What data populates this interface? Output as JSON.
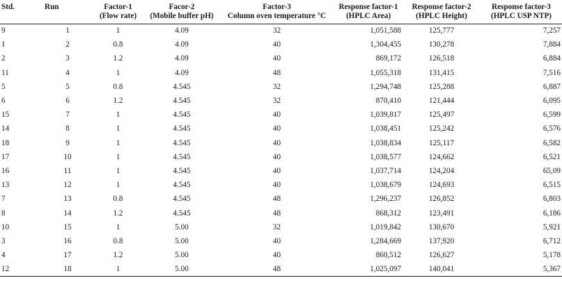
{
  "table": {
    "headers": [
      {
        "line1": "Std.",
        "line2": ""
      },
      {
        "line1": "Run",
        "line2": ""
      },
      {
        "line1": "Factor-1",
        "line2": "(Flow rate)"
      },
      {
        "line1": "Facor-2",
        "line2": "(Mobile buffer pH)"
      },
      {
        "line1": "Factor-3",
        "line2": "Column oven temperature °C"
      },
      {
        "line1": "Response factor-1",
        "line2": "(HPLC Area)"
      },
      {
        "line1": "Response factor-2",
        "line2": "(HPLC Height)"
      },
      {
        "line1": "Response factor-3",
        "line2": "(HPLC USP NTP)"
      }
    ],
    "rows": [
      [
        "9",
        "1",
        "1",
        "4.09",
        "32",
        "1,051,588",
        "125,777",
        "7,257"
      ],
      [
        "1",
        "2",
        "0.8",
        "4.09",
        "40",
        "1,304,455",
        "130,278",
        "7,884"
      ],
      [
        "2",
        "3",
        "1.2",
        "4.09",
        "40",
        "869,172",
        "126,518",
        "6,884"
      ],
      [
        "11",
        "4",
        "1",
        "4.09",
        "48",
        "1,055,318",
        "131,415",
        "7,516"
      ],
      [
        "5",
        "5",
        "0.8",
        "4.545",
        "32",
        "1,294,748",
        "125,288",
        "6,887"
      ],
      [
        "6",
        "6",
        "1.2",
        "4.545",
        "32",
        "870,410",
        "121,444",
        "6,095"
      ],
      [
        "15",
        "7",
        "1",
        "4.545",
        "40",
        "1,039,817",
        "125,497",
        "6,599"
      ],
      [
        "14",
        "8",
        "1",
        "4.545",
        "40",
        "1,038,451",
        "125,242",
        "6,576"
      ],
      [
        "18",
        "9",
        "1",
        "4.545",
        "40",
        "1,038,834",
        "125,117",
        "6,582"
      ],
      [
        "17",
        "10",
        "1",
        "4.545",
        "40",
        "1,038,577",
        "124,662",
        "6,521"
      ],
      [
        "16",
        "11",
        "1",
        "4.545",
        "40",
        "1,037,714",
        "124,204",
        "65,09"
      ],
      [
        "13",
        "12",
        "1",
        "4.545",
        "40",
        "1,038,679",
        "124,693",
        "6,515"
      ],
      [
        "7",
        "13",
        "0.8",
        "4.545",
        "48",
        "1,296,237",
        "126,852",
        "6,803"
      ],
      [
        "8",
        "14",
        "1.2",
        "4.545",
        "48",
        "868,312",
        "123,491",
        "6,186"
      ],
      [
        "10",
        "15",
        "1",
        "5.00",
        "32",
        "1,019,842",
        "130,670",
        "5,921"
      ],
      [
        "3",
        "16",
        "0.8",
        "5.00",
        "40",
        "1,284,669",
        "137,920",
        "6,712"
      ],
      [
        "4",
        "17",
        "1.2",
        "5.00",
        "40",
        "860,512",
        "126,627",
        "5,178"
      ],
      [
        "12",
        "18",
        "1",
        "5.00",
        "48",
        "1,025,097",
        "140,041",
        "5,367"
      ]
    ]
  }
}
